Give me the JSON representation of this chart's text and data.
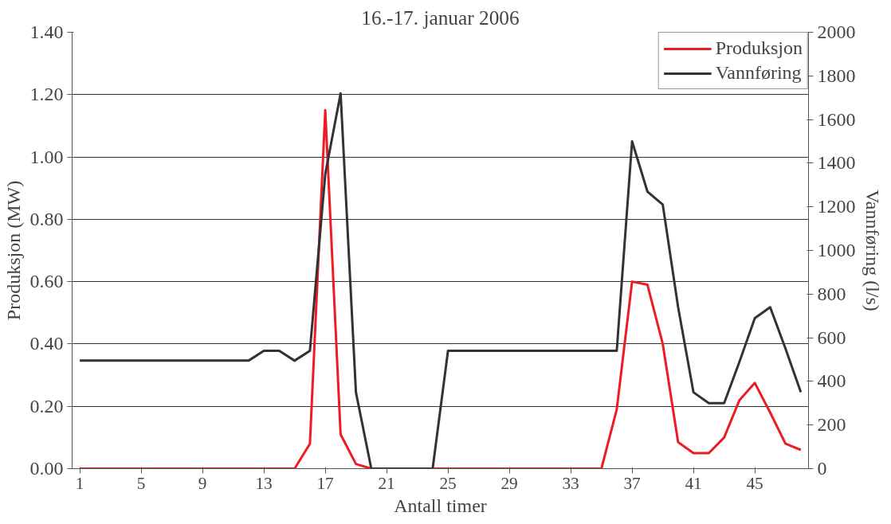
{
  "chart_data": {
    "type": "line",
    "title": "16.-17. januar 2006",
    "xlabel": "Antall timer",
    "ylabel": "Produksjon (MW)",
    "y2label": "Vannføring (l/s)",
    "x": [
      1,
      2,
      3,
      4,
      5,
      6,
      7,
      8,
      9,
      10,
      11,
      12,
      13,
      14,
      15,
      16,
      17,
      18,
      19,
      20,
      21,
      22,
      23,
      24,
      25,
      26,
      27,
      28,
      29,
      30,
      31,
      32,
      33,
      34,
      35,
      36,
      37,
      38,
      39,
      40,
      41,
      42,
      43,
      44,
      45,
      46,
      47,
      48
    ],
    "series": [
      {
        "name": "Produksjon",
        "color": "#ed1c24",
        "values": [
          0,
          0,
          0,
          0,
          0,
          0,
          0,
          0,
          0,
          0,
          0,
          0,
          0,
          0,
          0,
          0.08,
          1.15,
          0.11,
          0.015,
          0,
          0,
          0,
          0,
          0,
          0,
          0,
          0,
          0,
          0,
          0,
          0,
          0,
          0,
          0,
          0,
          0.19,
          0.6,
          0.59,
          0.4,
          0.085,
          0.05,
          0.05,
          0.1,
          0.22,
          0.275,
          0.18,
          0.08,
          0.06
        ]
      },
      {
        "name": "Vannføring",
        "color": "#333333",
        "axis": "y2",
        "values": [
          495,
          495,
          495,
          495,
          495,
          495,
          495,
          495,
          495,
          495,
          495,
          495,
          540,
          540,
          495,
          540,
          1350,
          1720,
          350,
          0,
          0,
          0,
          0,
          0,
          540,
          540,
          540,
          540,
          540,
          540,
          540,
          540,
          540,
          540,
          540,
          540,
          1500,
          1270,
          1210,
          740,
          350,
          300,
          300,
          490,
          690,
          740,
          550,
          350
        ]
      }
    ],
    "xlim": [
      0.5,
      48.5
    ],
    "xticks": [
      1,
      5,
      9,
      13,
      17,
      21,
      25,
      29,
      33,
      37,
      41,
      45
    ],
    "ylim": [
      0,
      1.4
    ],
    "yticks": [
      {
        "value": 0,
        "label": "0.00"
      },
      {
        "value": 0.2,
        "label": "0.20"
      },
      {
        "value": 0.4,
        "label": "0.40"
      },
      {
        "value": 0.6,
        "label": "0.60"
      },
      {
        "value": 0.8,
        "label": "0.80"
      },
      {
        "value": 1.0,
        "label": "1.00"
      },
      {
        "value": 1.2,
        "label": "1.20"
      },
      {
        "value": 1.4,
        "label": "1.40"
      }
    ],
    "y2lim": [
      0,
      2000
    ],
    "y2ticks": [
      0,
      200,
      400,
      600,
      800,
      1000,
      1200,
      1400,
      1600,
      1800,
      2000
    ],
    "grid": "y",
    "legend": "top right",
    "marker": "none",
    "line_style": "solid"
  }
}
